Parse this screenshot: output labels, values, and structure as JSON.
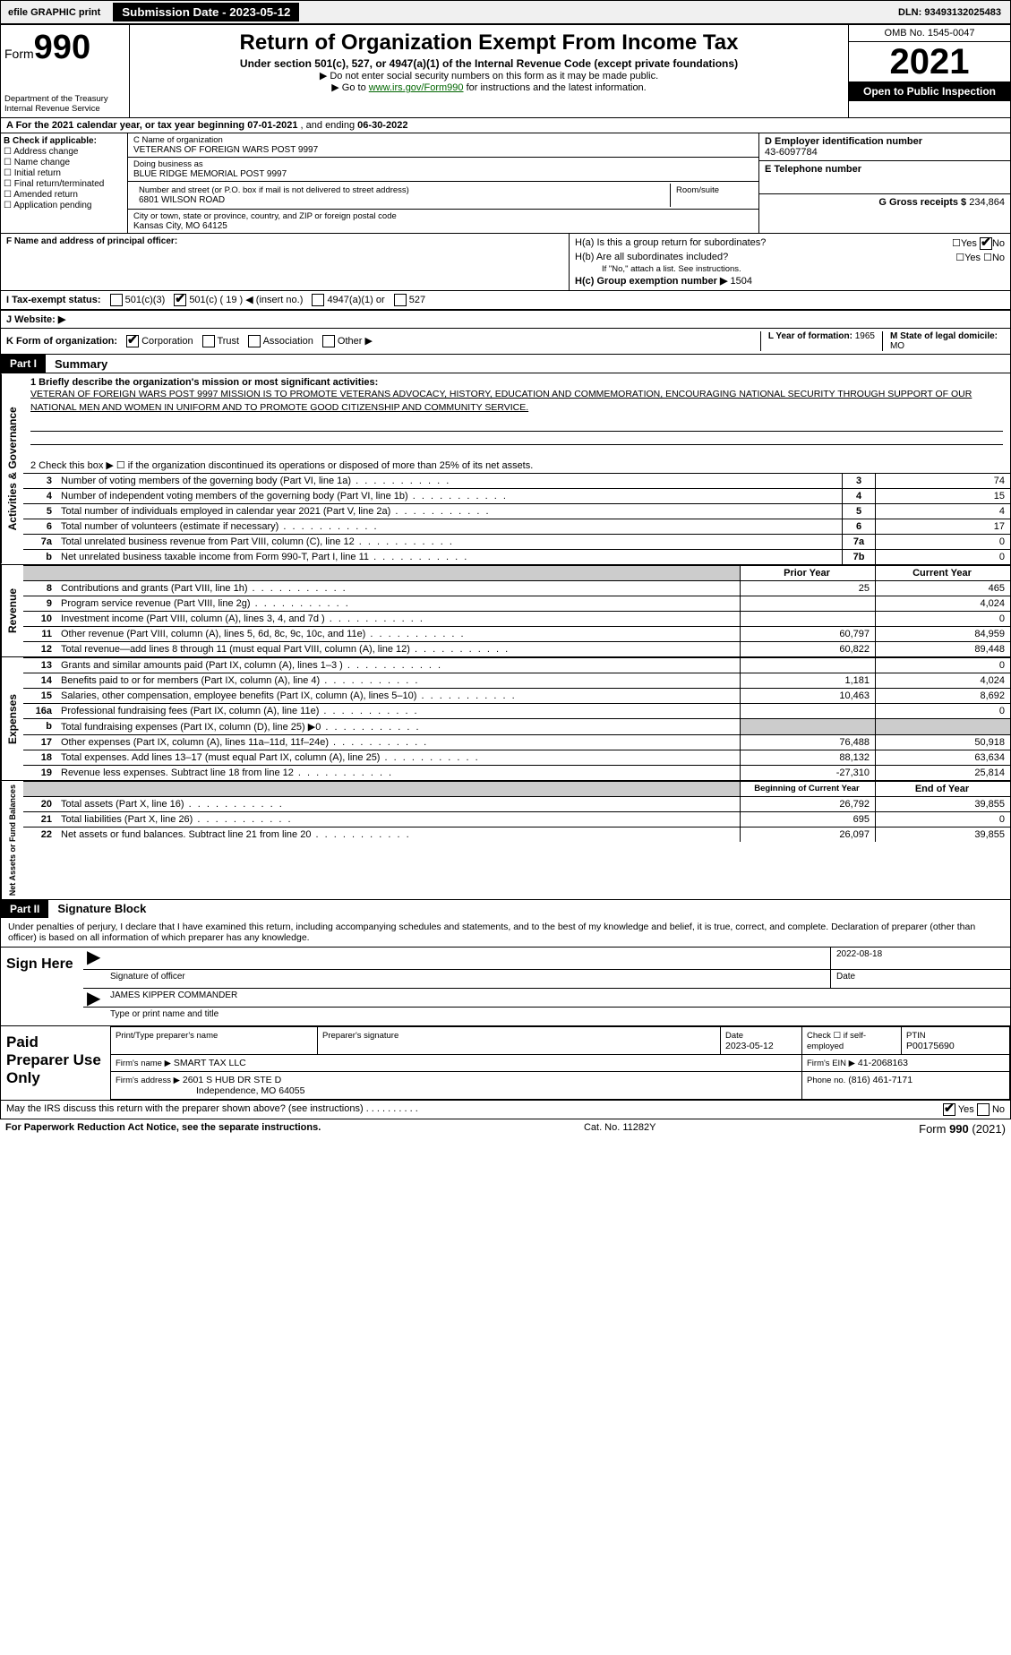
{
  "colors": {
    "black": "#000000",
    "white": "#ffffff",
    "grey_shade": "#cccccc",
    "link_green": "#006600"
  },
  "top_bar": {
    "efile_label": "efile GRAPHIC print",
    "submission_label": "Submission Date - 2023-05-12",
    "dln_label": "DLN: 93493132025483"
  },
  "header": {
    "form_label": "Form",
    "form_number": "990",
    "dept": "Department of the Treasury",
    "irs": "Internal Revenue Service",
    "title": "Return of Organization Exempt From Income Tax",
    "subtitle": "Under section 501(c), 527, or 4947(a)(1) of the Internal Revenue Code (except private foundations)",
    "note1": "▶ Do not enter social security numbers on this form as it may be made public.",
    "note2_pre": "▶ Go to ",
    "note2_link": "www.irs.gov/Form990",
    "note2_post": " for instructions and the latest information.",
    "omb": "OMB No. 1545-0047",
    "year": "2021",
    "open_public": "Open to Public Inspection"
  },
  "row_a": {
    "label": "A For the 2021 calendar year, or tax year beginning ",
    "begin": "07-01-2021",
    "mid": " , and ending ",
    "end": "06-30-2022"
  },
  "col_b": {
    "label": "B Check if applicable:",
    "items": [
      "Address change",
      "Name change",
      "Initial return",
      "Final return/terminated",
      "Amended return",
      "Application pending"
    ]
  },
  "col_c": {
    "name_label": "C Name of organization",
    "name": "VETERANS OF FOREIGN WARS POST 9997",
    "dba_label": "Doing business as",
    "dba": "BLUE RIDGE MEMORIAL POST 9997",
    "street_label": "Number and street (or P.O. box if mail is not delivered to street address)",
    "room_label": "Room/suite",
    "street": "6801 WILSON ROAD",
    "city_label": "City or town, state or province, country, and ZIP or foreign postal code",
    "city": "Kansas City, MO  64125"
  },
  "col_d": {
    "label": "D Employer identification number",
    "value": "43-6097784"
  },
  "col_e": {
    "label": "E Telephone number",
    "value": ""
  },
  "col_g": {
    "label": "G Gross receipts $",
    "value": "234,864"
  },
  "row_f": {
    "label": "F  Name and address of principal officer:"
  },
  "row_h": {
    "ha_label": "H(a)  Is this a group return for subordinates?",
    "ha_yes": "Yes",
    "ha_no": "No",
    "hb_label": "H(b)  Are all subordinates included?",
    "hb_note": "If \"No,\" attach a list. See instructions.",
    "hc_label": "H(c)  Group exemption number ▶",
    "hc_value": "1504"
  },
  "row_i": {
    "label": "I   Tax-exempt status:",
    "opts": [
      "501(c)(3)",
      "501(c) ( 19 ) ◀ (insert no.)",
      "4947(a)(1) or",
      "527"
    ],
    "checked_index": 1
  },
  "row_j": {
    "label": "J   Website: ▶"
  },
  "row_k": {
    "label": "K Form of organization:",
    "opts": [
      "Corporation",
      "Trust",
      "Association",
      "Other ▶"
    ],
    "checked_index": 0,
    "l_label": "L Year of formation:",
    "l_value": "1965",
    "m_label": "M State of legal domicile:",
    "m_value": "MO"
  },
  "part1": {
    "hdr": "Part I",
    "title": "Summary",
    "line1_label": "1  Briefly describe the organization's mission or most significant activities:",
    "mission": "VETERAN OF FOREIGN WARS POST 9997 MISSION IS TO PROMOTE VETERANS ADVOCACY, HISTORY, EDUCATION AND COMMEMORATION, ENCOURAGING NATIONAL SECURITY THROUGH SUPPORT OF OUR NATIONAL MEN AND WOMEN IN UNIFORM AND TO PROMOTE GOOD CITIZENSHIP AND COMMUNITY SERVICE.",
    "line2": "2   Check this box ▶ ☐  if the organization discontinued its operations or disposed of more than 25% of its net assets.",
    "gov_rows": [
      {
        "n": "3",
        "label": "Number of voting members of the governing body (Part VI, line 1a)",
        "box": "3",
        "val": "74"
      },
      {
        "n": "4",
        "label": "Number of independent voting members of the governing body (Part VI, line 1b)",
        "box": "4",
        "val": "15"
      },
      {
        "n": "5",
        "label": "Total number of individuals employed in calendar year 2021 (Part V, line 2a)",
        "box": "5",
        "val": "4"
      },
      {
        "n": "6",
        "label": "Total number of volunteers (estimate if necessary)",
        "box": "6",
        "val": "17"
      },
      {
        "n": "7a",
        "label": "Total unrelated business revenue from Part VIII, column (C), line 12",
        "box": "7a",
        "val": "0"
      },
      {
        "n": "b",
        "label": "Net unrelated business taxable income from Form 990-T, Part I, line 11",
        "box": "7b",
        "val": "0"
      }
    ],
    "col_hdr_prior": "Prior Year",
    "col_hdr_current": "Current Year",
    "side_gov": "Activities & Governance",
    "side_rev": "Revenue",
    "side_exp": "Expenses",
    "side_net": "Net Assets or Fund Balances",
    "rev_rows": [
      {
        "n": "8",
        "label": "Contributions and grants (Part VIII, line 1h)",
        "p": "25",
        "c": "465"
      },
      {
        "n": "9",
        "label": "Program service revenue (Part VIII, line 2g)",
        "p": "",
        "c": "4,024"
      },
      {
        "n": "10",
        "label": "Investment income (Part VIII, column (A), lines 3, 4, and 7d )",
        "p": "",
        "c": "0"
      },
      {
        "n": "11",
        "label": "Other revenue (Part VIII, column (A), lines 5, 6d, 8c, 9c, 10c, and 11e)",
        "p": "60,797",
        "c": "84,959"
      },
      {
        "n": "12",
        "label": "Total revenue—add lines 8 through 11 (must equal Part VIII, column (A), line 12)",
        "p": "60,822",
        "c": "89,448"
      }
    ],
    "exp_rows": [
      {
        "n": "13",
        "label": "Grants and similar amounts paid (Part IX, column (A), lines 1–3 )",
        "p": "",
        "c": "0"
      },
      {
        "n": "14",
        "label": "Benefits paid to or for members (Part IX, column (A), line 4)",
        "p": "1,181",
        "c": "4,024"
      },
      {
        "n": "15",
        "label": "Salaries, other compensation, employee benefits (Part IX, column (A), lines 5–10)",
        "p": "10,463",
        "c": "8,692"
      },
      {
        "n": "16a",
        "label": "Professional fundraising fees (Part IX, column (A), line 11e)",
        "p": "",
        "c": "0"
      },
      {
        "n": "b",
        "label": "Total fundraising expenses (Part IX, column (D), line 25) ▶0",
        "p": "shade",
        "c": "shade"
      },
      {
        "n": "17",
        "label": "Other expenses (Part IX, column (A), lines 11a–11d, 11f–24e)",
        "p": "76,488",
        "c": "50,918"
      },
      {
        "n": "18",
        "label": "Total expenses. Add lines 13–17 (must equal Part IX, column (A), line 25)",
        "p": "88,132",
        "c": "63,634"
      },
      {
        "n": "19",
        "label": "Revenue less expenses. Subtract line 18 from line 12",
        "p": "-27,310",
        "c": "25,814"
      }
    ],
    "net_hdr_begin": "Beginning of Current Year",
    "net_hdr_end": "End of Year",
    "net_rows": [
      {
        "n": "20",
        "label": "Total assets (Part X, line 16)",
        "p": "26,792",
        "c": "39,855"
      },
      {
        "n": "21",
        "label": "Total liabilities (Part X, line 26)",
        "p": "695",
        "c": "0"
      },
      {
        "n": "22",
        "label": "Net assets or fund balances. Subtract line 21 from line 20",
        "p": "26,097",
        "c": "39,855"
      }
    ]
  },
  "part2": {
    "hdr": "Part II",
    "title": "Signature Block",
    "declaration": "Under penalties of perjury, I declare that I have examined this return, including accompanying schedules and statements, and to the best of my knowledge and belief, it is true, correct, and complete. Declaration of preparer (other than officer) is based on all information of which preparer has any knowledge.",
    "sign_here": "Sign Here",
    "sig_officer_label": "Signature of officer",
    "date_label": "Date",
    "sig_date": "2022-08-18",
    "name_title": "JAMES KIPPER  COMMANDER",
    "name_title_label": "Type or print name and title",
    "paid_label": "Paid Preparer Use Only",
    "prep_name_label": "Print/Type preparer's name",
    "prep_sig_label": "Preparer's signature",
    "prep_date_label": "Date",
    "prep_date": "2023-05-12",
    "check_self": "Check ☐ if self-employed",
    "ptin_label": "PTIN",
    "ptin": "P00175690",
    "firm_name_label": "Firm's name   ▶",
    "firm_name": "SMART TAX LLC",
    "firm_ein_label": "Firm's EIN ▶",
    "firm_ein": "41-2068163",
    "firm_addr_label": "Firm's address ▶",
    "firm_addr1": "2601 S HUB DR STE D",
    "firm_addr2": "Independence, MO  64055",
    "phone_label": "Phone no.",
    "phone": "(816) 461-7171",
    "discuss": "May the IRS discuss this return with the preparer shown above? (see instructions)",
    "discuss_yes": "Yes",
    "discuss_no": "No"
  },
  "footer": {
    "pra": "For Paperwork Reduction Act Notice, see the separate instructions.",
    "cat": "Cat. No. 11282Y",
    "form": "Form 990 (2021)"
  }
}
